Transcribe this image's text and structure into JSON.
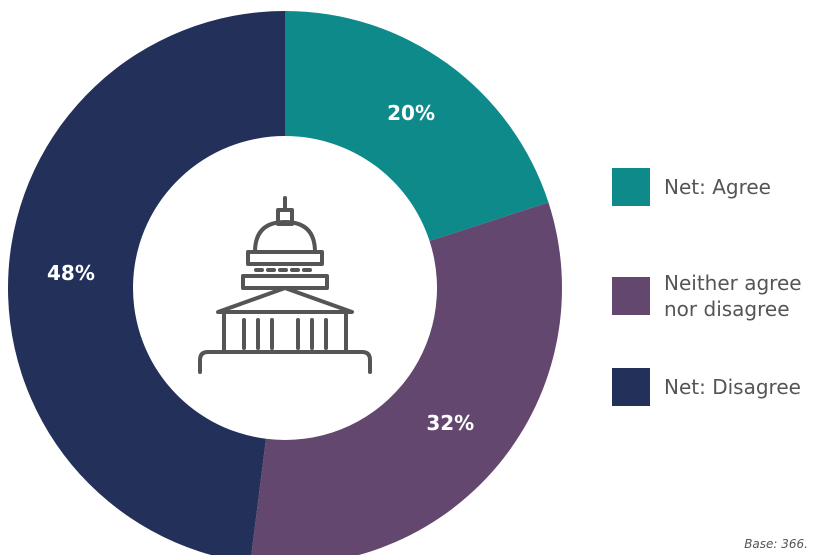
{
  "chart_data": {
    "type": "donut",
    "categories": [
      "Net: Agree",
      "Neither agree nor disagree",
      "Net: Disagree"
    ],
    "values": [
      20,
      32,
      48
    ],
    "value_labels": [
      "20%",
      "32%",
      "48%"
    ],
    "colors": [
      "#0e8a8b",
      "#64476f",
      "#23305a"
    ],
    "note": "Base: 366."
  }
}
